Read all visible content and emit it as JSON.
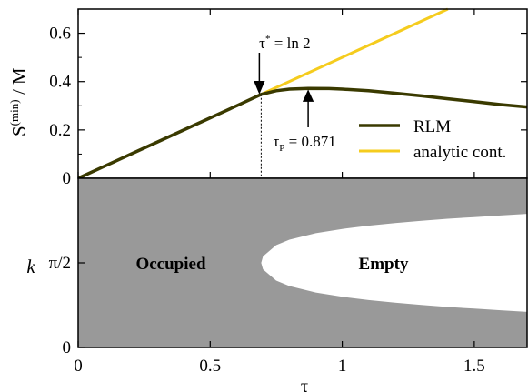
{
  "chart_data": [
    {
      "type": "line",
      "panel": "top",
      "xlabel": "",
      "ylabel": "S(min) / M",
      "ylabel_parts": {
        "main": "S",
        "sup": "(min)",
        "rest": " / M"
      },
      "xlim": [
        0,
        1.7
      ],
      "ylim": [
        0,
        0.7
      ],
      "yticks": [
        0,
        0.2,
        0.4,
        0.6
      ],
      "ytick_labels": [
        "0",
        "0.2",
        "0.4",
        "0.6"
      ],
      "grid": false,
      "legend_position": "bottom-right",
      "series": [
        {
          "name": "RLM",
          "color": "#3a3a00",
          "x": [
            0,
            0.1,
            0.2,
            0.3,
            0.4,
            0.5,
            0.6,
            0.693,
            0.75,
            0.8,
            0.871,
            0.95,
            1.0,
            1.1,
            1.2,
            1.3,
            1.4,
            1.5,
            1.6,
            1.7
          ],
          "y": [
            0,
            0.05,
            0.1,
            0.15,
            0.2,
            0.25,
            0.3,
            0.347,
            0.362,
            0.369,
            0.372,
            0.371,
            0.369,
            0.362,
            0.352,
            0.341,
            0.329,
            0.317,
            0.305,
            0.295
          ]
        },
        {
          "name": "analytic cont.",
          "color": "#f5cc1e",
          "x": [
            0.693,
            1.4
          ],
          "y": [
            0.347,
            0.7
          ]
        }
      ],
      "annotations": [
        {
          "text_main": "τ",
          "text_sup": "*",
          "text_rest": " = ln 2",
          "x": 0.693,
          "y": 0.347
        },
        {
          "text_main": "τ",
          "text_sub": "P",
          "text_rest": " = 0.871",
          "x": 0.871,
          "y": 0.372
        }
      ]
    },
    {
      "type": "heatmap",
      "panel": "bottom",
      "xlabel": "τ",
      "ylabel": "k",
      "xlim": [
        0,
        1.7
      ],
      "ylim": [
        0,
        3.14159
      ],
      "xticks": [
        0,
        0.5,
        1,
        1.5
      ],
      "xtick_labels": [
        "0",
        "0.5",
        "1",
        "1.5"
      ],
      "yticks": [
        0,
        1.5708
      ],
      "ytick_labels": [
        "0",
        "π/2"
      ],
      "regions": [
        {
          "label": "Occupied",
          "color": "#999999"
        },
        {
          "label": "Empty",
          "color": "#ffffff"
        }
      ],
      "boundary": {
        "description": "empty region bounded by k = π/2 ± δ(τ)",
        "tau": [
          0.693,
          0.7,
          0.75,
          0.8,
          0.9,
          1.0,
          1.1,
          1.2,
          1.3,
          1.4,
          1.5,
          1.6,
          1.7
        ],
        "delta": [
          0,
          0.12,
          0.33,
          0.43,
          0.55,
          0.63,
          0.69,
          0.74,
          0.78,
          0.82,
          0.85,
          0.88,
          0.91
        ]
      }
    }
  ]
}
